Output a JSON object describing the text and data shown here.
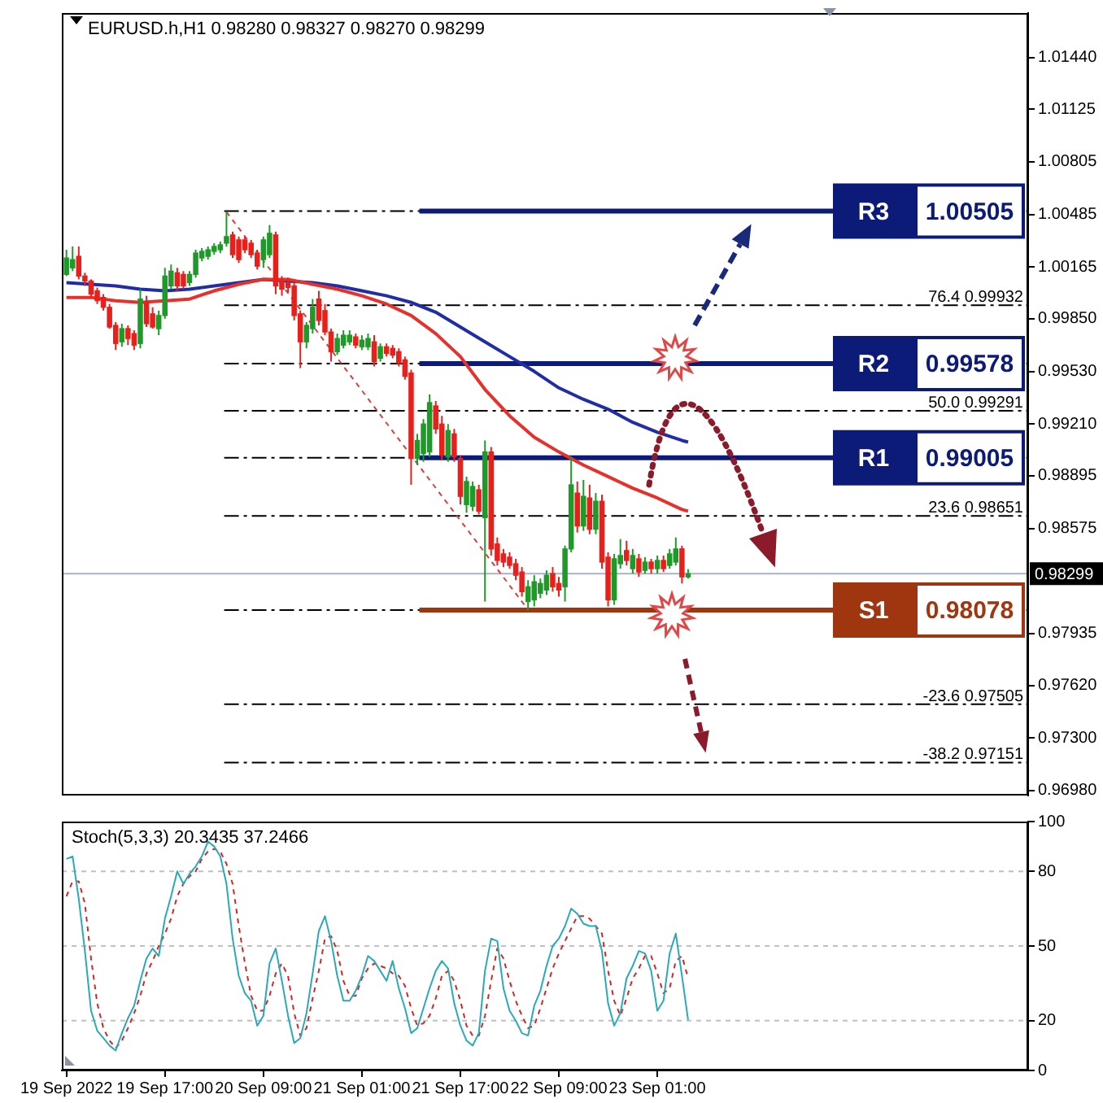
{
  "chart_data": [
    {
      "type": "candlestick",
      "title": "EURUSD.h,H1 0.98280 0.98327 0.98270 0.98299",
      "x": [
        "2022-09-19T01:00",
        "2022-09-19T02:00",
        "2022-09-19T03:00",
        "2022-09-19T04:00",
        "2022-09-19T05:00",
        "2022-09-19T06:00",
        "2022-09-19T07:00",
        "2022-09-19T08:00",
        "2022-09-19T09:00",
        "2022-09-19T10:00",
        "2022-09-19T11:00",
        "2022-09-19T12:00",
        "2022-09-19T13:00",
        "2022-09-19T14:00",
        "2022-09-19T15:00",
        "2022-09-19T16:00",
        "2022-09-19T17:00",
        "2022-09-19T18:00",
        "2022-09-19T19:00",
        "2022-09-19T20:00",
        "2022-09-19T21:00",
        "2022-09-19T22:00",
        "2022-09-19T23:00",
        "2022-09-20T00:00",
        "2022-09-20T01:00",
        "2022-09-20T02:00",
        "2022-09-20T03:00",
        "2022-09-20T04:00",
        "2022-09-20T05:00",
        "2022-09-20T06:00",
        "2022-09-20T07:00",
        "2022-09-20T08:00",
        "2022-09-20T09:00",
        "2022-09-20T10:00",
        "2022-09-20T11:00",
        "2022-09-20T12:00",
        "2022-09-20T13:00",
        "2022-09-20T14:00",
        "2022-09-20T15:00",
        "2022-09-20T16:00",
        "2022-09-20T17:00",
        "2022-09-20T18:00",
        "2022-09-20T19:00",
        "2022-09-20T20:00",
        "2022-09-20T21:00",
        "2022-09-20T22:00",
        "2022-09-20T23:00",
        "2022-09-21T00:00",
        "2022-09-21T01:00",
        "2022-09-21T02:00",
        "2022-09-21T03:00",
        "2022-09-21T04:00",
        "2022-09-21T05:00",
        "2022-09-21T06:00",
        "2022-09-21T07:00",
        "2022-09-21T08:00",
        "2022-09-21T09:00",
        "2022-09-21T10:00",
        "2022-09-21T11:00",
        "2022-09-21T12:00",
        "2022-09-21T13:00",
        "2022-09-21T14:00",
        "2022-09-21T15:00",
        "2022-09-21T16:00",
        "2022-09-21T17:00",
        "2022-09-21T18:00",
        "2022-09-21T19:00",
        "2022-09-21T20:00",
        "2022-09-21T21:00",
        "2022-09-21T22:00",
        "2022-09-21T23:00",
        "2022-09-22T00:00",
        "2022-09-22T01:00",
        "2022-09-22T02:00",
        "2022-09-22T03:00",
        "2022-09-22T04:00",
        "2022-09-22T05:00",
        "2022-09-22T06:00",
        "2022-09-22T07:00",
        "2022-09-22T08:00",
        "2022-09-22T09:00",
        "2022-09-22T10:00",
        "2022-09-22T11:00",
        "2022-09-22T12:00",
        "2022-09-22T13:00",
        "2022-09-22T14:00",
        "2022-09-22T15:00",
        "2022-09-22T16:00",
        "2022-09-22T17:00",
        "2022-09-22T18:00",
        "2022-09-22T19:00",
        "2022-09-22T20:00",
        "2022-09-22T21:00",
        "2022-09-22T22:00",
        "2022-09-22T23:00",
        "2022-09-23T00:00",
        "2022-09-23T01:00",
        "2022-09-23T02:00",
        "2022-09-23T03:00",
        "2022-09-23T04:00",
        "2022-09-23T05:00",
        "2022-09-23T06:00"
      ],
      "ohlc": [
        [
          1.0012,
          1.0027,
          1.0011,
          1.0022
        ],
        [
          1.0016,
          1.0029,
          1.0014,
          1.0021
        ],
        [
          1.0023,
          1.0029,
          1.0009,
          1.0011
        ],
        [
          1.0011,
          1.0013,
          1.0005,
          1.0008
        ],
        [
          1.0008,
          1.0009,
          0.9998,
          1.0
        ],
        [
          1.0002,
          1.0004,
          0.9994,
          0.9996
        ],
        [
          0.9998,
          1.0,
          0.999,
          0.9992
        ],
        [
          0.9992,
          0.9994,
          0.9979,
          0.998
        ],
        [
          0.9981,
          0.9983,
          0.9966,
          0.997
        ],
        [
          0.9971,
          0.9982,
          0.9968,
          0.9979
        ],
        [
          0.9979,
          0.9981,
          0.9969,
          0.9973
        ],
        [
          0.9976,
          0.9978,
          0.9966,
          0.9969
        ],
        [
          0.997,
          1.0003,
          0.9967,
          0.9997
        ],
        [
          0.9995,
          0.9999,
          0.998,
          0.9982
        ],
        [
          0.9988,
          0.9992,
          0.9979,
          0.998
        ],
        [
          0.9979,
          0.999,
          0.9975,
          0.9987
        ],
        [
          0.9987,
          1.0016,
          0.9985,
          1.0011
        ],
        [
          1.0005,
          1.0018,
          1.0003,
          1.0014
        ],
        [
          1.0013,
          1.0016,
          1.0002,
          1.0005
        ],
        [
          1.0012,
          1.0014,
          1.0003,
          1.0005
        ],
        [
          1.0007,
          1.0014,
          1.0005,
          1.0012
        ],
        [
          1.0012,
          1.0027,
          1.001,
          1.0025
        ],
        [
          1.0022,
          1.0028,
          1.002,
          1.0026
        ],
        [
          1.0023,
          1.0029,
          1.0021,
          1.0027
        ],
        [
          1.0026,
          1.0031,
          1.0024,
          1.0029
        ],
        [
          1.0027,
          1.0032,
          1.0025,
          1.003
        ],
        [
          1.0031,
          1.005,
          1.0029,
          1.0035
        ],
        [
          1.0036,
          1.0038,
          1.0022,
          1.0024
        ],
        [
          1.0033,
          1.0035,
          1.0019,
          1.0021
        ],
        [
          1.0033,
          1.0035,
          1.0025,
          1.0027
        ],
        [
          1.0031,
          1.0033,
          1.0022,
          1.0024
        ],
        [
          1.0025,
          1.0027,
          1.0015,
          1.0017
        ],
        [
          1.0021,
          1.0035,
          1.0016,
          1.0033
        ],
        [
          1.0024,
          1.0042,
          1.0022,
          1.0037
        ],
        [
          1.0036,
          1.0038,
          1.0,
          1.0005
        ],
        [
          1.0008,
          1.0011,
          0.9999,
          1.0003
        ],
        [
          1.0007,
          1.001,
          1.0001,
          1.0004
        ],
        [
          1.0005,
          1.0008,
          0.9984,
          0.9987
        ],
        [
          0.9988,
          0.999,
          0.9955,
          0.9971
        ],
        [
          0.9971,
          0.9983,
          0.9967,
          0.9981
        ],
        [
          0.9979,
          0.9997,
          0.9976,
          0.9992
        ],
        [
          0.9997,
          1.0002,
          0.9981,
          0.9984
        ],
        [
          0.999,
          0.9994,
          0.9975,
          0.9977
        ],
        [
          0.9977,
          0.9979,
          0.9959,
          0.9965
        ],
        [
          0.9965,
          0.9976,
          0.9963,
          0.9973
        ],
        [
          0.9969,
          0.9978,
          0.9967,
          0.9975
        ],
        [
          0.9971,
          0.9978,
          0.9969,
          0.9975
        ],
        [
          0.9974,
          0.9976,
          0.9967,
          0.9969
        ],
        [
          0.9968,
          0.9975,
          0.9966,
          0.9972
        ],
        [
          0.9968,
          0.9976,
          0.9966,
          0.9973
        ],
        [
          0.9971,
          0.9975,
          0.9956,
          0.9959
        ],
        [
          0.9961,
          0.997,
          0.9959,
          0.9968
        ],
        [
          0.9968,
          0.997,
          0.9962,
          0.9964
        ],
        [
          0.9967,
          0.9969,
          0.9961,
          0.9963
        ],
        [
          0.9965,
          0.9967,
          0.9956,
          0.9958
        ],
        [
          0.996,
          0.9962,
          0.9948,
          0.995
        ],
        [
          0.9952,
          0.9954,
          0.9884,
          0.99
        ],
        [
          0.99,
          0.9915,
          0.9896,
          0.9911
        ],
        [
          0.9903,
          0.9924,
          0.9898,
          0.9921
        ],
        [
          0.9904,
          0.9939,
          0.9901,
          0.9934
        ],
        [
          0.9932,
          0.9935,
          0.9915,
          0.9918
        ],
        [
          0.9921,
          0.9926,
          0.9899,
          0.9902
        ],
        [
          0.9901,
          0.9921,
          0.9898,
          0.9917
        ],
        [
          0.9915,
          0.9918,
          0.9898,
          0.9901
        ],
        [
          0.99,
          0.9902,
          0.9872,
          0.9877
        ],
        [
          0.9872,
          0.9889,
          0.9867,
          0.9886
        ],
        [
          0.9871,
          0.9886,
          0.9868,
          0.9883
        ],
        [
          0.9881,
          0.9884,
          0.9866,
          0.9868
        ],
        [
          0.9864,
          0.9911,
          0.9813,
          0.9904
        ],
        [
          0.9904,
          0.9907,
          0.9841,
          0.9845
        ],
        [
          0.9848,
          0.9852,
          0.9835,
          0.9838
        ],
        [
          0.9842,
          0.9845,
          0.9834,
          0.9837
        ],
        [
          0.984,
          0.9843,
          0.9833,
          0.9835
        ],
        [
          0.9836,
          0.9839,
          0.9826,
          0.9829
        ],
        [
          0.9831,
          0.9834,
          0.9816,
          0.9819
        ],
        [
          0.9813,
          0.9826,
          0.9808,
          0.9822
        ],
        [
          0.9814,
          0.9829,
          0.981,
          0.9825
        ],
        [
          0.9818,
          0.9827,
          0.9815,
          0.9824
        ],
        [
          0.982,
          0.9832,
          0.9817,
          0.9829
        ],
        [
          0.983,
          0.9834,
          0.9819,
          0.9822
        ],
        [
          0.9824,
          0.9828,
          0.9816,
          0.982
        ],
        [
          0.9822,
          0.9847,
          0.9813,
          0.9845
        ],
        [
          0.9845,
          0.9901,
          0.9843,
          0.9884
        ],
        [
          0.9879,
          0.9886,
          0.9855,
          0.9859
        ],
        [
          0.9859,
          0.9887,
          0.9856,
          0.9877
        ],
        [
          0.9876,
          0.9884,
          0.9854,
          0.9857
        ],
        [
          0.9857,
          0.9879,
          0.9854,
          0.9874
        ],
        [
          0.9874,
          0.9878,
          0.9833,
          0.9837
        ],
        [
          0.984,
          0.9843,
          0.981,
          0.9814
        ],
        [
          0.9814,
          0.9842,
          0.9811,
          0.9839
        ],
        [
          0.9836,
          0.9851,
          0.9833,
          0.9841
        ],
        [
          0.9844,
          0.985,
          0.9835,
          0.9838
        ],
        [
          0.9833,
          0.9845,
          0.983,
          0.9841
        ],
        [
          0.9839,
          0.9842,
          0.9828,
          0.9831
        ],
        [
          0.9832,
          0.984,
          0.983,
          0.9837
        ],
        [
          0.9837,
          0.9839,
          0.983,
          0.9833
        ],
        [
          0.9833,
          0.9841,
          0.983,
          0.9838
        ],
        [
          0.9838,
          0.9841,
          0.9831,
          0.9833
        ],
        [
          0.9835,
          0.9845,
          0.9833,
          0.9842
        ],
        [
          0.9837,
          0.9852,
          0.9835,
          0.9845
        ],
        [
          0.9845,
          0.9847,
          0.9824,
          0.9828
        ],
        [
          0.9828,
          0.98327,
          0.9827,
          0.98299
        ]
      ],
      "colors": [
        "#1e9a28",
        "#1e9a28",
        "#e8201c",
        "#e8201c",
        "#e8201c",
        "#e8201c",
        "#e8201c",
        "#e8201c",
        "#e8201c",
        "#1e9a28",
        "#e8201c",
        "#e8201c",
        "#1e9a28",
        "#e8201c",
        "#e8201c",
        "#1e9a28",
        "#1e9a28",
        "#1e9a28",
        "#e8201c",
        "#e8201c",
        "#1e9a28",
        "#1e9a28",
        "#1e9a28",
        "#1e9a28",
        "#1e9a28",
        "#1e9a28",
        "#1e9a28",
        "#e8201c",
        "#e8201c",
        "#e8201c",
        "#e8201c",
        "#e8201c",
        "#1e9a28",
        "#1e9a28",
        "#e8201c",
        "#e8201c",
        "#e8201c",
        "#e8201c",
        "#e8201c",
        "#1e9a28",
        "#1e9a28",
        "#e8201c",
        "#e8201c",
        "#e8201c",
        "#1e9a28",
        "#1e9a28",
        "#1e9a28",
        "#e8201c",
        "#1e9a28",
        "#1e9a28",
        "#e8201c",
        "#1e9a28",
        "#e8201c",
        "#e8201c",
        "#e8201c",
        "#e8201c",
        "#e8201c",
        "#1e9a28",
        "#1e9a28",
        "#1e9a28",
        "#e8201c",
        "#e8201c",
        "#1e9a28",
        "#e8201c",
        "#e8201c",
        "#1e9a28",
        "#1e9a28",
        "#e8201c",
        "#1e9a28",
        "#e8201c",
        "#e8201c",
        "#e8201c",
        "#e8201c",
        "#e8201c",
        "#e8201c",
        "#1e9a28",
        "#1e9a28",
        "#1e9a28",
        "#1e9a28",
        "#e8201c",
        "#e8201c",
        "#1e9a28",
        "#1e9a28",
        "#e8201c",
        "#1e9a28",
        "#e8201c",
        "#1e9a28",
        "#e8201c",
        "#e8201c",
        "#1e9a28",
        "#1e9a28",
        "#e8201c",
        "#1e9a28",
        "#e8201c",
        "#1e9a28",
        "#e8201c",
        "#1e9a28",
        "#e8201c",
        "#1e9a28",
        "#1e9a28",
        "#e8201c",
        "#1e9a28"
      ],
      "series": [
        {
          "type": "line",
          "color": "#e8302a",
          "x": [
            "2022-09-19T01:00",
            "2022-09-19T05:00",
            "2022-09-19T09:00",
            "2022-09-19T13:00",
            "2022-09-19T17:00",
            "2022-09-19T21:00",
            "2022-09-20T01:00",
            "2022-09-20T05:00",
            "2022-09-20T09:00",
            "2022-09-20T13:00",
            "2022-09-20T17:00",
            "2022-09-20T21:00",
            "2022-09-21T01:00",
            "2022-09-21T05:00",
            "2022-09-21T09:00",
            "2022-09-21T13:00",
            "2022-09-21T17:00",
            "2022-09-21T21:00",
            "2022-09-22T01:00",
            "2022-09-22T05:00",
            "2022-09-22T09:00",
            "2022-09-22T13:00",
            "2022-09-22T17:00",
            "2022-09-22T21:00",
            "2022-09-23T01:00",
            "2022-09-23T05:00",
            "2022-09-23T06:00"
          ],
          "values": [
            0.9998,
            0.9998,
            0.9996,
            0.9995,
            0.9996,
            0.9997,
            1.0002,
            1.0006,
            1.0009,
            1.0009,
            1.0006,
            1.0003,
            0.9999,
            0.9994,
            0.9987,
            0.9976,
            0.9962,
            0.9942,
            0.9926,
            0.9913,
            0.9904,
            0.9896,
            0.9889,
            0.9882,
            0.9876,
            0.9869,
            0.9868
          ]
        },
        {
          "type": "line",
          "color": "#1f2ea6",
          "x": [
            "2022-09-19T01:00",
            "2022-09-19T05:00",
            "2022-09-19T09:00",
            "2022-09-19T13:00",
            "2022-09-19T17:00",
            "2022-09-19T21:00",
            "2022-09-20T01:00",
            "2022-09-20T05:00",
            "2022-09-20T09:00",
            "2022-09-20T13:00",
            "2022-09-20T17:00",
            "2022-09-20T21:00",
            "2022-09-21T01:00",
            "2022-09-21T05:00",
            "2022-09-21T09:00",
            "2022-09-21T13:00",
            "2022-09-21T17:00",
            "2022-09-21T21:00",
            "2022-09-22T01:00",
            "2022-09-22T05:00",
            "2022-09-22T09:00",
            "2022-09-22T13:00",
            "2022-09-22T17:00",
            "2022-09-22T21:00",
            "2022-09-23T01:00",
            "2022-09-23T05:00",
            "2022-09-23T06:00"
          ],
          "values": [
            1.0007,
            1.0006,
            1.0005,
            1.0003,
            1.0002,
            1.0003,
            1.0005,
            1.0007,
            1.0009,
            1.0008,
            1.0007,
            1.0005,
            1.0002,
            0.9999,
            0.9995,
            0.9989,
            0.998,
            0.9971,
            0.9962,
            0.9953,
            0.9943,
            0.9936,
            0.993,
            0.9922,
            0.9916,
            0.9911,
            0.991
          ]
        },
        {
          "type": "line",
          "color": "#d84040",
          "line_style": "dashed",
          "x": [
            "2022-09-20T03:00",
            "2022-09-22T04:00"
          ],
          "values": [
            1.005,
            0.9808
          ]
        }
      ],
      "xlim": [
        "2022-09-19T00:15",
        "2022-09-25T13:15"
      ],
      "ylim": [
        0.9695,
        1.0171
      ],
      "yticks": [
        {
          "value": 1.0144,
          "label": "1.01440"
        },
        1.01125,
        1.00805,
        1.00485,
        1.00165,
        {
          "value": 0.9985,
          "label": "0.99850"
        },
        {
          "value": 0.9953,
          "label": "0.99530"
        },
        {
          "value": 0.9921,
          "label": "0.99210"
        },
        0.98895,
        0.98575,
        0.97935,
        {
          "value": 0.9762,
          "label": "0.97620"
        },
        {
          "value": 0.973,
          "label": "0.97300"
        },
        {
          "value": 0.9698,
          "label": "0.96980"
        }
      ],
      "tick_labels": "y",
      "ref_lines": [
        {
          "axis": "y",
          "value": 1.00505,
          "color": "#000000",
          "line_style": "dashed"
        },
        {
          "axis": "y",
          "value": 0.99932,
          "label": "76.4 0.99932",
          "color": "#000000",
          "line_style": "dashed"
        },
        {
          "axis": "y",
          "value": 0.99578,
          "color": "#000000",
          "line_style": "dashed"
        },
        {
          "axis": "y",
          "value": 0.99291,
          "label": "50.0 0.99291",
          "color": "#000000",
          "line_style": "dashed"
        },
        {
          "axis": "y",
          "value": 0.99005,
          "color": "#000000",
          "line_style": "dashed"
        },
        {
          "axis": "y",
          "value": 0.98651,
          "label": "23.6 0.98651",
          "color": "#000000",
          "line_style": "dashed"
        },
        {
          "axis": "y",
          "value": 0.98078,
          "color": "#000000",
          "line_style": "dashed"
        },
        {
          "axis": "y",
          "value": 0.97505,
          "label": "-23.6 0.97505",
          "color": "#000000",
          "line_style": "dashed"
        },
        {
          "axis": "y",
          "value": 0.97151,
          "label": "-38.2 0.97151",
          "color": "#000000",
          "line_style": "dashed"
        },
        {
          "axis": "y",
          "value": 1.00505,
          "label": "R3 1.00505",
          "color": "#0c1a78",
          "line_style": "solid"
        },
        {
          "axis": "y",
          "value": 0.99578,
          "label": "R2 0.99578",
          "color": "#0c1a78",
          "line_style": "solid"
        },
        {
          "axis": "y",
          "value": 0.99005,
          "label": "R1 0.99005",
          "color": "#0c1a78",
          "line_style": "solid"
        },
        {
          "axis": "y",
          "value": 0.98078,
          "label": "S1 0.98078",
          "color": "#a0360f",
          "line_style": "solid"
        },
        {
          "axis": "y",
          "value": 0.98299,
          "label": "0.98299",
          "color": "#a9b2c4"
        }
      ]
    },
    {
      "type": "line",
      "title": "Stoch(5,3,3) 20.3435 37.2466",
      "x": [
        "2022-09-19T01:00",
        "2022-09-19T02:00",
        "2022-09-19T03:00",
        "2022-09-19T04:00",
        "2022-09-19T05:00",
        "2022-09-19T06:00",
        "2022-09-19T07:00",
        "2022-09-19T08:00",
        "2022-09-19T09:00",
        "2022-09-19T10:00",
        "2022-09-19T11:00",
        "2022-09-19T12:00",
        "2022-09-19T13:00",
        "2022-09-19T14:00",
        "2022-09-19T15:00",
        "2022-09-19T16:00",
        "2022-09-19T17:00",
        "2022-09-19T18:00",
        "2022-09-19T19:00",
        "2022-09-19T20:00",
        "2022-09-19T21:00",
        "2022-09-19T22:00",
        "2022-09-19T23:00",
        "2022-09-20T00:00",
        "2022-09-20T01:00",
        "2022-09-20T02:00",
        "2022-09-20T03:00",
        "2022-09-20T04:00",
        "2022-09-20T05:00",
        "2022-09-20T06:00",
        "2022-09-20T07:00",
        "2022-09-20T08:00",
        "2022-09-20T09:00",
        "2022-09-20T10:00",
        "2022-09-20T11:00",
        "2022-09-20T12:00",
        "2022-09-20T13:00",
        "2022-09-20T14:00",
        "2022-09-20T15:00",
        "2022-09-20T16:00",
        "2022-09-20T17:00",
        "2022-09-20T18:00",
        "2022-09-20T19:00",
        "2022-09-20T20:00",
        "2022-09-20T21:00",
        "2022-09-20T22:00",
        "2022-09-20T23:00",
        "2022-09-21T00:00",
        "2022-09-21T01:00",
        "2022-09-21T02:00",
        "2022-09-21T03:00",
        "2022-09-21T04:00",
        "2022-09-21T05:00",
        "2022-09-21T06:00",
        "2022-09-21T07:00",
        "2022-09-21T08:00",
        "2022-09-21T09:00",
        "2022-09-21T10:00",
        "2022-09-21T11:00",
        "2022-09-21T12:00",
        "2022-09-21T13:00",
        "2022-09-21T14:00",
        "2022-09-21T15:00",
        "2022-09-21T16:00",
        "2022-09-21T17:00",
        "2022-09-21T18:00",
        "2022-09-21T19:00",
        "2022-09-21T20:00",
        "2022-09-21T21:00",
        "2022-09-21T22:00",
        "2022-09-21T23:00",
        "2022-09-22T00:00",
        "2022-09-22T01:00",
        "2022-09-22T02:00",
        "2022-09-22T03:00",
        "2022-09-22T04:00",
        "2022-09-22T05:00",
        "2022-09-22T06:00",
        "2022-09-22T07:00",
        "2022-09-22T08:00",
        "2022-09-22T09:00",
        "2022-09-22T10:00",
        "2022-09-22T11:00",
        "2022-09-22T12:00",
        "2022-09-22T13:00",
        "2022-09-22T14:00",
        "2022-09-22T15:00",
        "2022-09-22T16:00",
        "2022-09-22T17:00",
        "2022-09-22T18:00",
        "2022-09-22T19:00",
        "2022-09-22T20:00",
        "2022-09-22T21:00",
        "2022-09-22T22:00",
        "2022-09-22T23:00",
        "2022-09-23T00:00",
        "2022-09-23T01:00",
        "2022-09-23T02:00",
        "2022-09-23T03:00",
        "2022-09-23T04:00",
        "2022-09-23T05:00",
        "2022-09-23T06:00"
      ],
      "series": [
        {
          "color": "#2aaab8",
          "values": [
            85,
            86,
            69,
            48,
            24,
            16,
            13,
            10,
            8,
            15,
            21,
            26,
            36,
            45,
            49,
            46,
            61,
            70,
            80,
            75,
            79,
            82,
            86,
            92,
            90,
            86,
            75,
            53,
            38,
            31,
            28,
            18,
            22,
            43,
            49,
            36,
            22,
            11,
            13,
            23,
            39,
            56,
            62,
            52,
            38,
            28,
            28,
            32,
            38,
            46,
            44,
            40,
            36,
            44,
            33,
            25,
            15,
            17,
            25,
            33,
            40,
            44,
            41,
            27,
            18,
            12,
            10,
            15,
            40,
            53,
            52,
            33,
            24,
            20,
            15,
            14,
            26,
            32,
            42,
            50,
            53,
            58,
            65,
            63,
            59,
            58,
            58,
            48,
            27,
            18,
            23,
            37,
            42,
            48,
            47,
            40,
            24,
            28,
            47,
            55,
            38,
            20.3
          ]
        },
        {
          "color": "#d02828",
          "line_style": "dashed",
          "values": [
            70,
            76,
            76,
            67,
            45,
            27,
            17,
            12,
            9,
            12,
            17,
            23,
            30,
            39,
            44,
            50,
            55,
            61,
            70,
            75,
            78,
            80,
            85,
            88,
            89,
            88,
            83,
            75,
            58,
            43,
            30,
            24,
            24,
            30,
            39,
            43,
            38,
            23,
            14,
            17,
            29,
            40,
            53,
            54,
            48,
            36,
            30,
            30,
            37,
            41,
            43,
            42,
            41,
            39,
            38,
            34,
            25,
            18,
            19,
            22,
            29,
            38,
            40,
            36,
            28,
            18,
            14,
            14,
            22,
            36,
            49,
            45,
            36,
            28,
            22,
            17,
            18,
            25,
            33,
            41,
            47,
            52,
            57,
            62,
            62,
            61,
            58,
            55,
            40,
            28,
            22,
            29,
            37,
            41,
            46,
            46,
            39,
            31,
            33,
            44,
            46,
            37.2
          ]
        }
      ],
      "xlim": [
        "2022-09-19T00:15",
        "2022-09-25T13:15"
      ],
      "xticks": [
        {
          "value": "2022-09-19T01:00",
          "label": "19 Sep 2022"
        },
        {
          "value": "2022-09-19T17:00",
          "label": "19 Sep 17:00"
        },
        {
          "value": "2022-09-20T09:00",
          "label": "20 Sep 09:00"
        },
        {
          "value": "2022-09-21T01:00",
          "label": "21 Sep 01:00"
        },
        {
          "value": "2022-09-21T17:00",
          "label": "21 Sep 17:00"
        },
        {
          "value": "2022-09-22T09:00",
          "label": "22 Sep 09:00"
        },
        {
          "value": "2022-09-23T01:00",
          "label": "23 Sep 01:00"
        }
      ],
      "ylim": [
        0,
        100
      ],
      "yticks": [
        0,
        20,
        50,
        80,
        100
      ],
      "ref_lines": [
        {
          "axis": "y",
          "value": 80,
          "color": "#c0c0c0",
          "line_style": "dashed"
        },
        {
          "axis": "y",
          "value": 50,
          "color": "#c0c0c0",
          "line_style": "dashed"
        },
        {
          "axis": "y",
          "value": 20,
          "color": "#c0c0c0",
          "line_style": "dashed"
        }
      ]
    }
  ]
}
